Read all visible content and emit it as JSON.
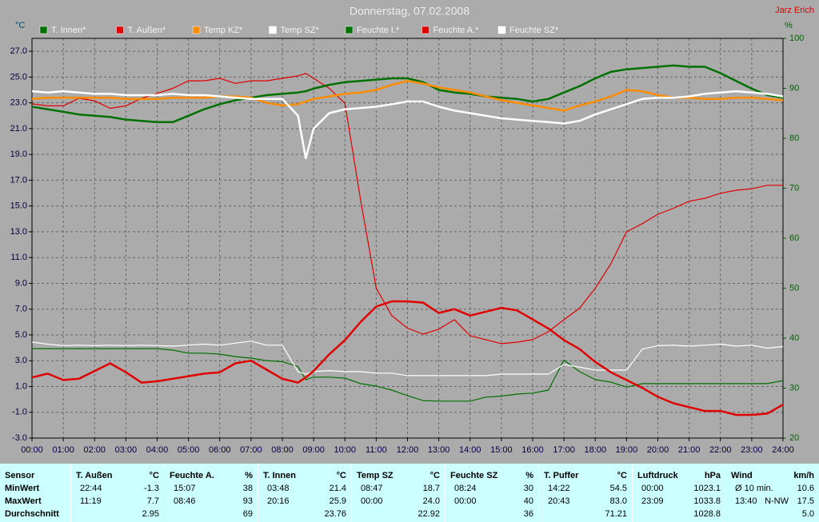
{
  "chart_data": {
    "type": "line",
    "title": "Donnerstag, 07.02.2008",
    "credit": "Jarz Erich",
    "y_label": "°C",
    "y2_label": "%",
    "grid": true,
    "legend": "top",
    "x": [
      0,
      0.5,
      1,
      1.5,
      2,
      2.5,
      3,
      3.5,
      4,
      4.5,
      5,
      5.5,
      6,
      6.5,
      7,
      7.5,
      8,
      8.5,
      8.75,
      9,
      9.5,
      10,
      10.5,
      11,
      11.5,
      12,
      12.5,
      13,
      13.5,
      14,
      14.5,
      15,
      15.5,
      16,
      16.5,
      17,
      17.5,
      18,
      18.5,
      19,
      19.5,
      20,
      20.5,
      21,
      21.5,
      22,
      22.5,
      23,
      23.5,
      24
    ],
    "xlim": [
      0,
      24
    ],
    "xticks": [
      {
        "value": 0,
        "label": "00:00"
      },
      {
        "value": 1,
        "label": "01:00"
      },
      {
        "value": 2,
        "label": "02:00"
      },
      {
        "value": 3,
        "label": "03:00"
      },
      {
        "value": 4,
        "label": "04:00"
      },
      {
        "value": 5,
        "label": "05:00"
      },
      {
        "value": 6,
        "label": "06:00"
      },
      {
        "value": 7,
        "label": "07:00"
      },
      {
        "value": 8,
        "label": "08:00"
      },
      {
        "value": 9,
        "label": "09:00"
      },
      {
        "value": 10,
        "label": "10:00"
      },
      {
        "value": 11,
        "label": "11:00"
      },
      {
        "value": 12,
        "label": "12:00"
      },
      {
        "value": 13,
        "label": "13:00"
      },
      {
        "value": 14,
        "label": "14:00"
      },
      {
        "value": 15,
        "label": "15:00"
      },
      {
        "value": 16,
        "label": "16:00"
      },
      {
        "value": 17,
        "label": "17:00"
      },
      {
        "value": 18,
        "label": "18:00"
      },
      {
        "value": 19,
        "label": "19:00"
      },
      {
        "value": 20,
        "label": "20:00"
      },
      {
        "value": 21,
        "label": "21:00"
      },
      {
        "value": 22,
        "label": "22:00"
      },
      {
        "value": 23,
        "label": "23:00"
      },
      {
        "value": 24,
        "label": "24:00"
      }
    ],
    "ylim": [
      -3,
      28
    ],
    "yticks": [
      {
        "value": -3,
        "label": "-3.0"
      },
      {
        "value": -1,
        "label": "-1.0"
      },
      {
        "value": 1,
        "label": "1.0"
      },
      {
        "value": 3,
        "label": "3.0"
      },
      {
        "value": 5,
        "label": "5.0"
      },
      {
        "value": 7,
        "label": "7.0"
      },
      {
        "value": 9,
        "label": "9.0"
      },
      {
        "value": 11,
        "label": "11.0"
      },
      {
        "value": 13,
        "label": "13.0"
      },
      {
        "value": 15,
        "label": "15.0"
      },
      {
        "value": 17,
        "label": "17.0"
      },
      {
        "value": 19,
        "label": "19.0"
      },
      {
        "value": 21,
        "label": "21.0"
      },
      {
        "value": 23,
        "label": "23.0"
      },
      {
        "value": 25,
        "label": "25.0"
      },
      {
        "value": 27,
        "label": "27.0"
      }
    ],
    "y2lim": [
      20,
      100
    ],
    "y2ticks": [
      20,
      30,
      40,
      50,
      60,
      70,
      80,
      90,
      100
    ],
    "series": [
      {
        "name": "T. Innen*",
        "color": "#007000",
        "values": [
          22.7,
          22.5,
          22.3,
          22.1,
          22.0,
          21.9,
          21.7,
          21.6,
          21.5,
          21.5,
          22.0,
          22.5,
          22.9,
          23.2,
          23.4,
          23.6,
          23.7,
          23.8,
          23.9,
          24.1,
          24.4,
          24.6,
          24.7,
          24.8,
          24.9,
          24.9,
          24.6,
          24.0,
          23.8,
          23.7,
          23.5,
          23.4,
          23.3,
          23.1,
          23.3,
          23.8,
          24.3,
          24.9,
          25.4,
          25.6,
          25.7,
          25.8,
          25.9,
          25.8,
          25.8,
          25.3,
          24.7,
          24.1,
          23.6,
          23.4
        ]
      },
      {
        "name": "T. Außen*",
        "color": "#e00000",
        "values": [
          1.7,
          2.0,
          1.5,
          1.6,
          2.2,
          2.8,
          2.1,
          1.3,
          1.4,
          1.6,
          1.8,
          2.0,
          2.1,
          2.8,
          3.0,
          2.3,
          1.6,
          1.3,
          1.7,
          2.2,
          3.5,
          4.6,
          6.0,
          7.2,
          7.6,
          7.6,
          7.5,
          6.7,
          7.0,
          6.5,
          6.8,
          7.1,
          6.9,
          6.2,
          5.5,
          4.6,
          3.9,
          2.9,
          2.1,
          1.5,
          0.9,
          0.2,
          -0.3,
          -0.6,
          -0.9,
          -0.9,
          -1.2,
          -1.2,
          -1.1,
          -0.4
        ]
      },
      {
        "name": "Temp KZ*",
        "color": "#ff8c00",
        "values": [
          23.3,
          23.4,
          23.4,
          23.4,
          23.4,
          23.4,
          23.3,
          23.3,
          23.3,
          23.4,
          23.4,
          23.4,
          23.5,
          23.5,
          23.4,
          23.0,
          22.8,
          22.9,
          23.1,
          23.3,
          23.5,
          23.7,
          23.8,
          24.0,
          24.4,
          24.7,
          24.5,
          24.2,
          24.0,
          23.8,
          23.5,
          23.2,
          23.0,
          22.8,
          22.6,
          22.4,
          22.8,
          23.1,
          23.5,
          24.0,
          23.9,
          23.6,
          23.4,
          23.4,
          23.3,
          23.3,
          23.4,
          23.4,
          23.3,
          23.2
        ]
      },
      {
        "name": "Temp SZ*",
        "color": "#ffffff",
        "values": [
          23.9,
          23.8,
          23.9,
          23.8,
          23.7,
          23.7,
          23.6,
          23.6,
          23.6,
          23.7,
          23.6,
          23.6,
          23.5,
          23.4,
          23.3,
          23.3,
          23.3,
          22.0,
          18.7,
          21.0,
          22.2,
          22.5,
          22.6,
          22.7,
          22.9,
          23.1,
          23.1,
          22.7,
          22.4,
          22.2,
          22.0,
          21.8,
          21.7,
          21.6,
          21.5,
          21.4,
          21.6,
          22.1,
          22.5,
          22.9,
          23.3,
          23.4,
          23.4,
          23.5,
          23.7,
          23.8,
          23.9,
          23.8,
          23.7,
          23.5
        ]
      },
      {
        "name": "Feuchte I.*",
        "color": "#007000",
        "axis": "y2",
        "values": [
          37.9,
          37.9,
          37.9,
          37.9,
          37.9,
          37.9,
          37.9,
          37.9,
          37.9,
          37.6,
          37.0,
          37.0,
          36.8,
          36.3,
          36.0,
          35.5,
          35.3,
          34.3,
          31.7,
          32.2,
          32.2,
          32.0,
          30.9,
          30.4,
          29.6,
          28.5,
          27.5,
          27.4,
          27.4,
          27.4,
          28.2,
          28.4,
          28.8,
          29.0,
          29.6,
          35.6,
          33.3,
          31.7,
          31.2,
          30.2,
          30.9,
          30.9,
          30.9,
          30.9,
          30.9,
          30.9,
          30.9,
          30.9,
          30.9,
          31.5
        ]
      },
      {
        "name": "Feuchte A.*",
        "color": "#e00000",
        "axis": "y2",
        "values": [
          86.9,
          86.5,
          86.5,
          88,
          87.5,
          86,
          86.5,
          88,
          89,
          90,
          91.5,
          91.5,
          92,
          91,
          91.5,
          91.5,
          92,
          92.5,
          93,
          92,
          90,
          87,
          67.7,
          50,
          44.5,
          42,
          40.8,
          41.8,
          43.7,
          40.5,
          39.7,
          38.9,
          39.2,
          39.7,
          41.3,
          43.7,
          46,
          50,
          54.9,
          61.3,
          62.9,
          64.8,
          66,
          67.4,
          68,
          69,
          69.6,
          69.9,
          70.6,
          70.6
        ]
      },
      {
        "name": "Feuchte SZ*",
        "color": "#ffffff",
        "axis": "y2",
        "values": [
          39.2,
          38.8,
          38.5,
          38.6,
          38.5,
          38.6,
          38.5,
          38.6,
          38.5,
          38.4,
          38.6,
          38.8,
          38.6,
          39.0,
          39.4,
          38.6,
          38.6,
          33.3,
          32.8,
          33.3,
          33.5,
          33.3,
          33.3,
          33.0,
          33.0,
          32.5,
          32.5,
          32.5,
          32.5,
          32.5,
          32.5,
          32.8,
          32.8,
          32.8,
          32.8,
          34.7,
          34.2,
          33.6,
          33.6,
          33.6,
          37.8,
          38.5,
          38.6,
          38.4,
          38.6,
          38.8,
          38.4,
          38.6,
          38.0,
          38.3
        ]
      }
    ]
  },
  "summary": {
    "header": "Sensor",
    "row_labels": [
      "MinWert",
      "MaxWert",
      "Durchschnitt"
    ],
    "columns": [
      {
        "name": "T. Außen",
        "unit": "°C",
        "min": [
          "22:44",
          "-1.3"
        ],
        "max": [
          "11:19",
          "7.7"
        ],
        "avg": [
          "2.95"
        ]
      },
      {
        "name": "Feuchte A.",
        "unit": "%",
        "min": [
          "15:07",
          "38"
        ],
        "max": [
          "08:46",
          "93"
        ],
        "avg": [
          "69"
        ]
      },
      {
        "name": "T. Innen",
        "unit": "°C",
        "min": [
          "03:48",
          "21.4"
        ],
        "max": [
          "20:16",
          "25.9"
        ],
        "avg": [
          "23.76"
        ]
      },
      {
        "name": "Temp SZ",
        "unit": "°C",
        "min": [
          "08:47",
          "18.7"
        ],
        "max": [
          "00:00",
          "24.0"
        ],
        "avg": [
          "22.92"
        ]
      },
      {
        "name": "Feuchte SZ",
        "unit": "%",
        "min": [
          "08:24",
          "30"
        ],
        "max": [
          "00:00",
          "40"
        ],
        "avg": [
          "36"
        ]
      },
      {
        "name": "T. Puffer",
        "unit": "°C",
        "min": [
          "14:22",
          "54.5"
        ],
        "max": [
          "20:43",
          "83.0"
        ],
        "avg": [
          "71.21"
        ]
      },
      {
        "name": "Luftdruck",
        "unit": "hPa",
        "min": [
          "00:00",
          "1023.1"
        ],
        "max": [
          "23:09",
          "1033.8"
        ],
        "avg": [
          "1028.8"
        ]
      },
      {
        "name": "Wind",
        "unit": "km/h",
        "min": [
          "Ø 10 min.",
          "10.6"
        ],
        "max": [
          "13:40",
          "N-NW",
          "17.5"
        ],
        "avg": [
          "5.0"
        ]
      }
    ]
  }
}
